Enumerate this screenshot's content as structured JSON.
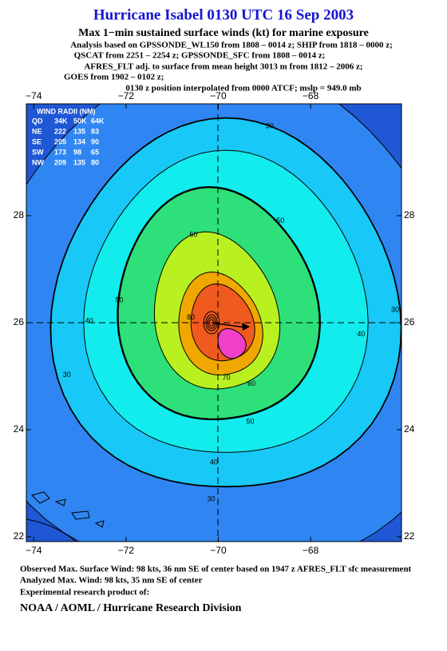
{
  "title": "Hurricane Isabel 0130 UTC 16 Sep 2003",
  "subtitle": "Max 1−min sustained surface winds (kt) for marine exposure",
  "analysis_lines": [
    "Analysis based on  GPSSONDE_WL150 from 1808 – 0014 z;  SHIP from 1818 – 0000 z;",
    "QSCAT from 2251 – 2254 z;  GPSSONDE_SFC from 1808 – 0014 z;",
    "AFRES_FLT adj. to surface from mean height 3013 m from 1812 – 2006 z;",
    "GOES from 1902 – 0102 z;",
    "0130 z position interpolated from 0000 ATCF; mslp = 949.0 mb"
  ],
  "map": {
    "xlim": [
      -74.16,
      -66.03
    ],
    "ylim": [
      21.91,
      30.09
    ],
    "xticks": [
      {
        "value": -74,
        "label": "−74"
      },
      {
        "value": -72,
        "label": "−72"
      },
      {
        "value": -70,
        "label": "−70"
      },
      {
        "value": -68,
        "label": "−68"
      }
    ],
    "yticks": [
      22,
      24,
      26,
      28
    ],
    "background": "#1f57d4",
    "contours": [
      {
        "level": 20,
        "color": "#2f86f2"
      },
      {
        "level": 30,
        "color": "#18c8f6"
      },
      {
        "level": 40,
        "color": "#12ecec"
      },
      {
        "level": 50,
        "color": "#2de07a"
      },
      {
        "level": 60,
        "color": "#b8f020"
      },
      {
        "level": 70,
        "color": "#f0a800"
      },
      {
        "level": 80,
        "color": "#f05a1e"
      },
      {
        "level": 90,
        "color": "#f040c8"
      }
    ]
  },
  "wind_radii": {
    "title": "WIND RADII (NM)",
    "header": [
      "QD",
      "34K",
      "50K",
      "64K"
    ],
    "rows": [
      [
        "NE",
        222,
        135,
        83
      ],
      [
        "SE",
        205,
        134,
        90
      ],
      [
        "SW",
        173,
        98,
        65
      ],
      [
        "NW",
        209,
        135,
        80
      ]
    ]
  },
  "footer": {
    "lines": [
      "Observed Max. Surface Wind: 98 kts, 36 nm SE of center based on 1947 z AFRES_FLT sfc measurement",
      "Analyzed Max. Wind: 98 kts, 35 nm SE of center",
      "Experimental research product of:"
    ],
    "credit": "NOAA / AOML / Hurricane Research Division"
  }
}
